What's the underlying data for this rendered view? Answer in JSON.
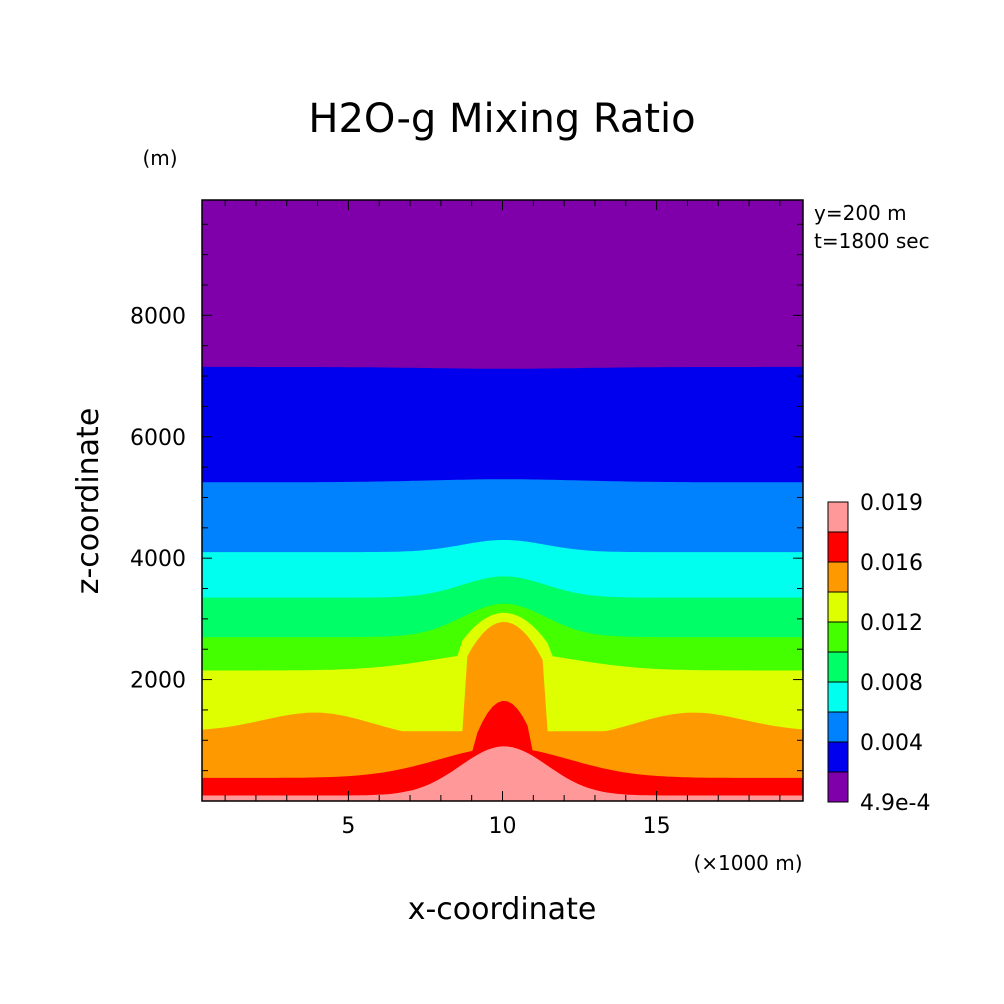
{
  "chart_data": {
    "type": "heatmap",
    "title": "H2O-g Mixing Ratio",
    "xlabel": "x-coordinate",
    "ylabel": "z-coordinate",
    "x_unit": "(×1000 m)",
    "y_unit": "(m)",
    "annotations": [
      "y=200 m",
      "t=1800 sec"
    ],
    "xlim": [
      0.25,
      19.75
    ],
    "ylim": [
      0,
      9900
    ],
    "xticks": [
      {
        "value": 5,
        "label": "5"
      },
      {
        "value": 10,
        "label": "10"
      },
      {
        "value": 15,
        "label": "15"
      }
    ],
    "yticks": [
      {
        "value": 2000,
        "label": "2000"
      },
      {
        "value": 4000,
        "label": "4000"
      },
      {
        "value": 6000,
        "label": "6000"
      },
      {
        "value": 8000,
        "label": "8000"
      }
    ],
    "levels": [
      0.00049,
      0.002,
      0.004,
      0.006,
      0.008,
      0.01,
      0.012,
      0.014,
      0.016,
      0.018,
      0.019
    ],
    "level_colors": [
      "#7f00aa",
      "#0000ee",
      "#0082ff",
      "#00ffee",
      "#00ff66",
      "#44ff00",
      "#ddff00",
      "#ff9900",
      "#ff0000",
      "#ff9999"
    ],
    "colorbar_labels": [
      {
        "value": 0.00049,
        "label": "4.9e-4"
      },
      {
        "value": 0.004,
        "label": "0.004"
      },
      {
        "value": 0.008,
        "label": "0.008"
      },
      {
        "value": 0.012,
        "label": "0.012"
      },
      {
        "value": 0.016,
        "label": "0.016"
      },
      {
        "value": 0.019,
        "label": "0.019"
      }
    ],
    "band_tops": [
      {
        "level": 0.002,
        "z_edge": 7150,
        "z_center": 7120,
        "bump": 0
      },
      {
        "level": 0.004,
        "z_edge": 5250,
        "z_center": 5300,
        "bump": 60
      },
      {
        "level": 0.006,
        "z_edge": 4100,
        "z_center": 4300,
        "bump": 200
      },
      {
        "level": 0.008,
        "z_edge": 3350,
        "z_center": 3700,
        "bump": 380
      },
      {
        "level": 0.01,
        "z_edge": 2700,
        "z_center": 3250,
        "bump": 600
      },
      {
        "level": 0.012,
        "z_edge": 2150,
        "z_center": 3100,
        "bump": 0
      },
      {
        "level": 0.014,
        "z_edge": 1150,
        "z_center": 2950,
        "bump": 0
      },
      {
        "level": 0.016,
        "z_edge": 380,
        "z_center": 1650,
        "bump": 0
      },
      {
        "level": 0.018,
        "z_edge": 90,
        "z_center": 900,
        "bump": 0
      }
    ]
  }
}
